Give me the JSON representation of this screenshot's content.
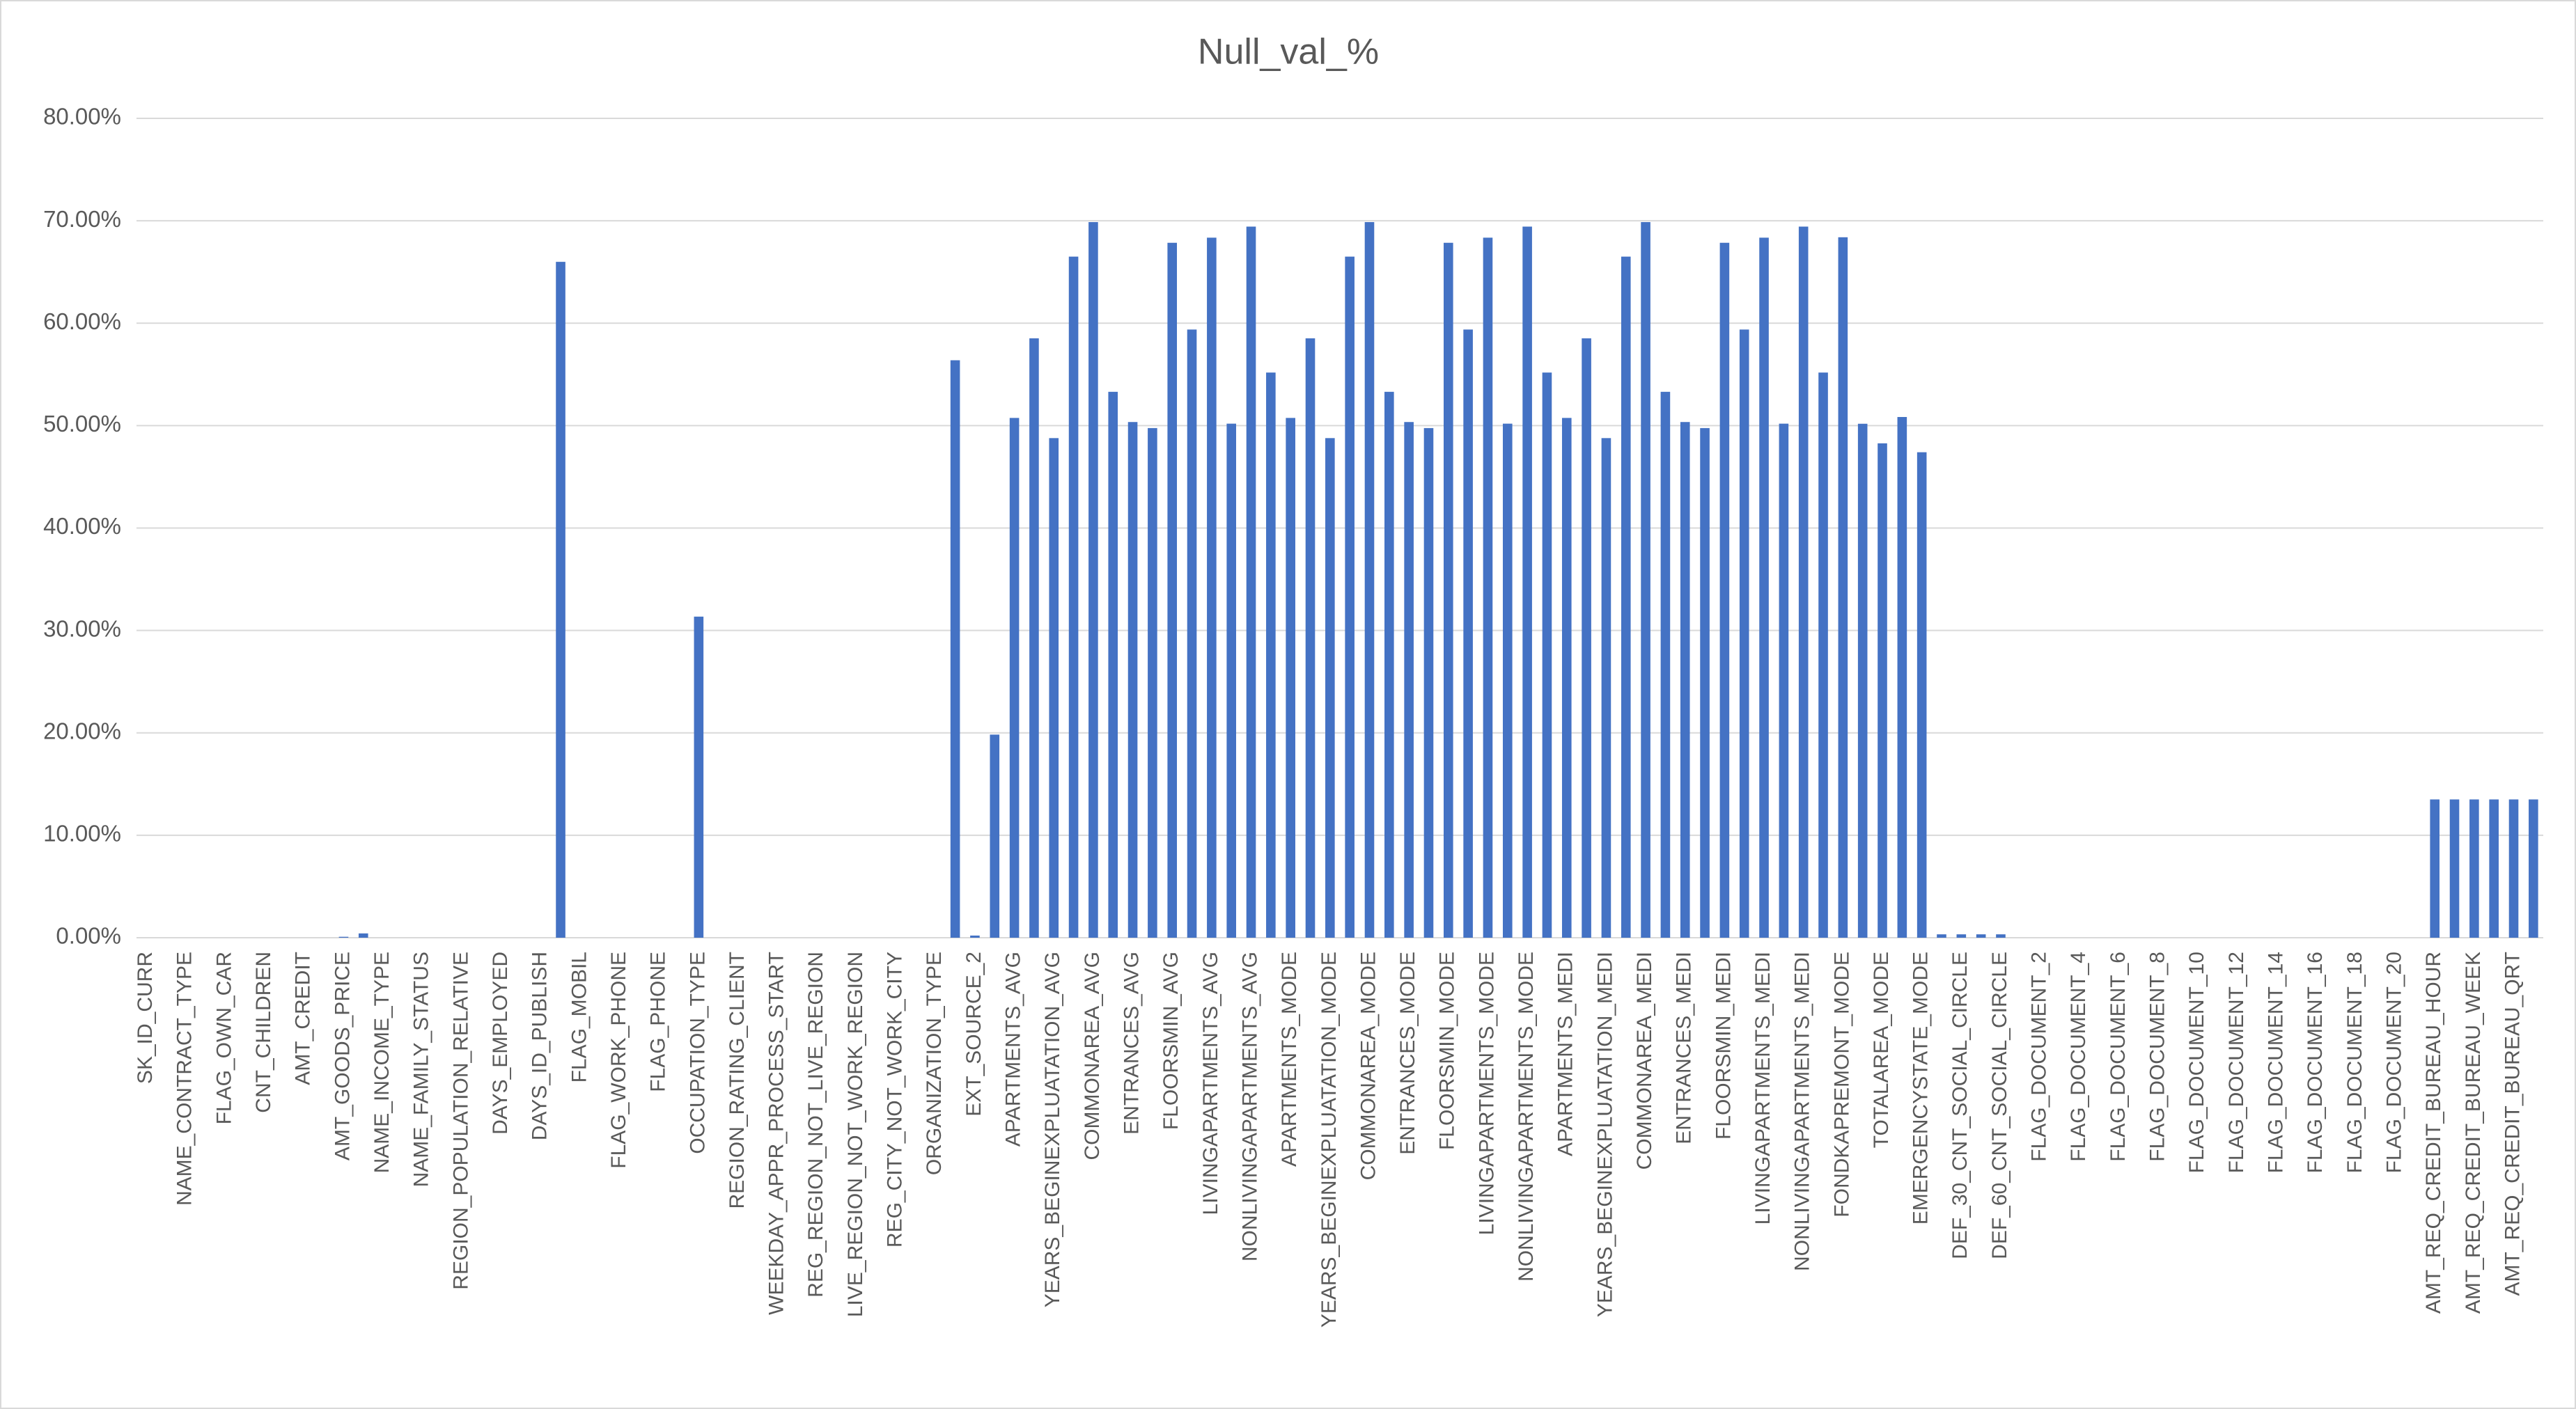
{
  "chart_data": {
    "type": "bar",
    "title": "Null_val_%",
    "categories": [
      "SK_ID_CURR",
      null,
      "NAME_CONTRACT_TYPE",
      null,
      "FLAG_OWN_CAR",
      null,
      "CNT_CHILDREN",
      null,
      "AMT_CREDIT",
      null,
      "AMT_GOODS_PRICE",
      null,
      "NAME_INCOME_TYPE",
      null,
      "NAME_FAMILY_STATUS",
      null,
      "REGION_POPULATION_RELATIVE",
      null,
      "DAYS_EMPLOYED",
      null,
      "DAYS_ID_PUBLISH",
      null,
      "FLAG_MOBIL",
      null,
      "FLAG_WORK_PHONE",
      null,
      "FLAG_PHONE",
      null,
      "OCCUPATION_TYPE",
      null,
      "REGION_RATING_CLIENT",
      null,
      "WEEKDAY_APPR_PROCESS_START",
      null,
      "REG_REGION_NOT_LIVE_REGION",
      null,
      "LIVE_REGION_NOT_WORK_REGION",
      null,
      "REG_CITY_NOT_WORK_CITY",
      null,
      "ORGANIZATION_TYPE",
      null,
      "EXT_SOURCE_2",
      null,
      "APARTMENTS_AVG",
      null,
      "YEARS_BEGINEXPLUATATION_AVG",
      null,
      "COMMONAREA_AVG",
      null,
      "ENTRANCES_AVG",
      null,
      "FLOORSMIN_AVG",
      null,
      "LIVINGAPARTMENTS_AVG",
      null,
      "NONLIVINGAPARTMENTS_AVG",
      null,
      "APARTMENTS_MODE",
      null,
      "YEARS_BEGINEXPLUATATION_MODE",
      null,
      "COMMONAREA_MODE",
      null,
      "ENTRANCES_MODE",
      null,
      "FLOORSMIN_MODE",
      null,
      "LIVINGAPARTMENTS_MODE",
      null,
      "NONLIVINGAPARTMENTS_MODE",
      null,
      "APARTMENTS_MEDI",
      null,
      "YEARS_BEGINEXPLUATATION_MEDI",
      null,
      "COMMONAREA_MEDI",
      null,
      "ENTRANCES_MEDI",
      null,
      "FLOORSMIN_MEDI",
      null,
      "LIVINGAPARTMENTS_MEDI",
      null,
      "NONLIVINGAPARTMENTS_MEDI",
      null,
      "FONDKAPREMONT_MODE",
      null,
      "TOTALAREA_MODE",
      null,
      "EMERGENCYSTATE_MODE",
      null,
      "DEF_30_CNT_SOCIAL_CIRCLE",
      null,
      "DEF_60_CNT_SOCIAL_CIRCLE",
      null,
      "FLAG_DOCUMENT_2",
      null,
      "FLAG_DOCUMENT_4",
      null,
      "FLAG_DOCUMENT_6",
      null,
      "FLAG_DOCUMENT_8",
      null,
      "FLAG_DOCUMENT_10",
      null,
      "FLAG_DOCUMENT_12",
      null,
      "FLAG_DOCUMENT_14",
      null,
      "FLAG_DOCUMENT_16",
      null,
      "FLAG_DOCUMENT_18",
      null,
      "FLAG_DOCUMENT_20",
      null,
      "AMT_REQ_CREDIT_BUREAU_HOUR",
      null,
      "AMT_REQ_CREDIT_BUREAU_WEEK",
      null,
      "AMT_REQ_CREDIT_BUREAU_QRT",
      null
    ],
    "values": [
      0,
      0,
      0,
      0,
      0,
      0,
      0,
      0,
      0,
      0,
      0.09,
      0.42,
      0,
      0,
      0,
      0,
      0,
      0,
      0,
      0,
      0,
      65.99,
      0,
      0,
      0,
      0,
      0,
      0,
      31.35,
      0,
      0,
      0,
      0,
      0,
      0,
      0,
      0,
      0,
      0,
      0,
      0,
      56.38,
      0.21,
      19.83,
      50.75,
      58.52,
      48.78,
      66.5,
      69.87,
      53.3,
      50.35,
      49.76,
      67.85,
      59.38,
      68.35,
      50.19,
      69.43,
      55.18,
      50.75,
      58.52,
      48.78,
      66.5,
      69.87,
      53.3,
      50.35,
      49.76,
      67.85,
      59.38,
      68.35,
      50.19,
      69.43,
      55.18,
      50.75,
      58.52,
      48.78,
      66.5,
      69.87,
      53.3,
      50.35,
      49.76,
      67.85,
      59.38,
      68.35,
      50.19,
      69.43,
      55.18,
      68.39,
      50.18,
      48.27,
      50.84,
      47.4,
      0.33,
      0.33,
      0.33,
      0.33,
      0,
      0,
      0,
      0,
      0,
      0,
      0,
      0,
      0,
      0,
      0,
      0,
      0,
      0,
      0,
      0,
      0,
      0,
      0,
      0,
      0,
      13.5,
      13.5,
      13.5,
      13.5,
      13.5,
      13.5
    ],
    "color": "#4472c4",
    "ylim": [
      0,
      80
    ],
    "yticks": [
      {
        "value": 0,
        "label": "0.00%"
      },
      {
        "value": 10,
        "label": "10.00%"
      },
      {
        "value": 20,
        "label": "20.00%"
      },
      {
        "value": 30,
        "label": "30.00%"
      },
      {
        "value": 40,
        "label": "40.00%"
      },
      {
        "value": 50,
        "label": "50.00%"
      },
      {
        "value": 60,
        "label": "60.00%"
      },
      {
        "value": 70,
        "label": "70.00%"
      },
      {
        "value": 80,
        "label": "80.00%"
      }
    ],
    "grid": true
  }
}
